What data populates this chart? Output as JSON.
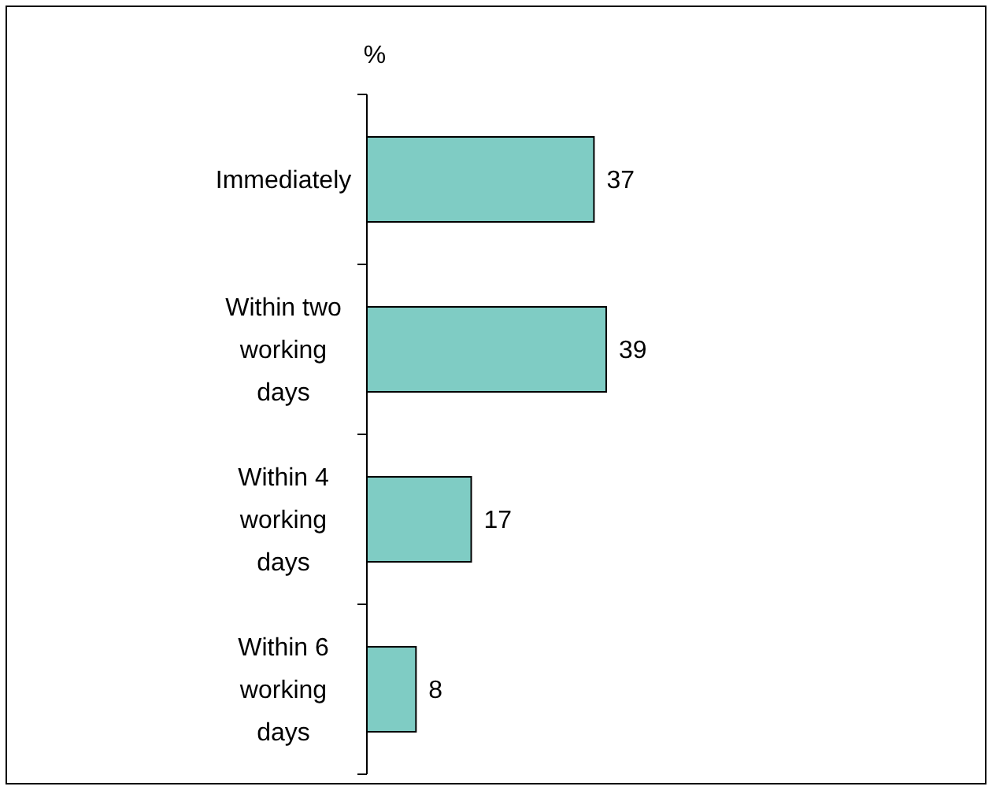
{
  "chart_data": {
    "type": "bar",
    "orientation": "horizontal",
    "ylabel": "%",
    "categories": [
      "Immediately",
      "Within two working days",
      "Within 4 working days",
      "Within 6 working days"
    ],
    "values": [
      37,
      39,
      17,
      8
    ],
    "color": "#7fccc4",
    "data_labels": true
  }
}
